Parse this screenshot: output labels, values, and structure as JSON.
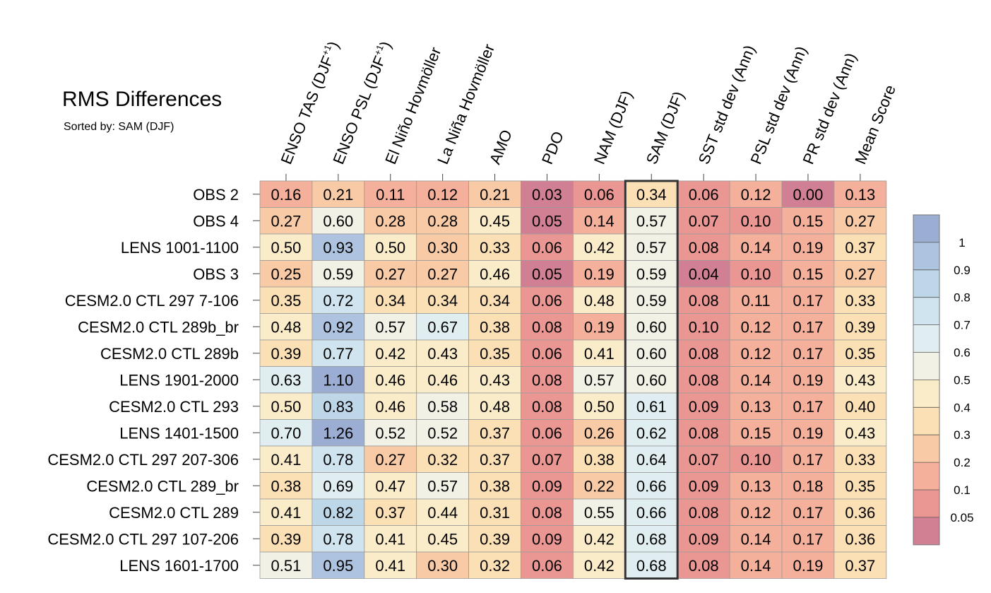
{
  "header": {
    "title": "RMS Differences",
    "subtitle": "Sorted by: SAM (DJF)"
  },
  "chart_data": {
    "type": "heatmap",
    "columns": [
      {
        "text": "ENSO TAS (DJF",
        "sup": "+1",
        "close": ")"
      },
      {
        "text": "ENSO PSL (DJF",
        "sup": "+1",
        "close": ")"
      },
      {
        "text": "El Niño Hovmöller"
      },
      {
        "text": "La Niña Hovmöller"
      },
      {
        "text": "AMO"
      },
      {
        "text": "PDO"
      },
      {
        "text": "NAM (DJF)"
      },
      {
        "text": "SAM (DJF)"
      },
      {
        "text": "SST std dev (Ann)"
      },
      {
        "text": "PSL std dev (Ann)"
      },
      {
        "text": "PR std dev (Ann)"
      },
      {
        "text": "Mean Score"
      }
    ],
    "highlighted_column": "SAM (DJF)",
    "rows": [
      "OBS 2",
      "OBS 4",
      "LENS 1001-1100",
      "OBS 3",
      "CESM2.0 CTL 297 7-106",
      "CESM2.0 CTL 289b_br",
      "CESM2.0 CTL 289b",
      "LENS 1901-2000",
      "CESM2.0 CTL 293",
      "LENS 1401-1500",
      "CESM2.0 CTL 297 207-306",
      "CESM2.0 CTL 289_br",
      "CESM2.0 CTL 289",
      "CESM2.0 CTL 297 107-206",
      "LENS 1601-1700"
    ],
    "values": [
      [
        "0.16",
        "0.21",
        "0.11",
        "0.12",
        "0.21",
        "0.03",
        "0.06",
        "0.34",
        "0.06",
        "0.12",
        "0.00",
        "0.13"
      ],
      [
        "0.27",
        "0.60",
        "0.28",
        "0.28",
        "0.45",
        "0.05",
        "0.14",
        "0.57",
        "0.07",
        "0.10",
        "0.15",
        "0.27"
      ],
      [
        "0.50",
        "0.93",
        "0.50",
        "0.30",
        "0.33",
        "0.06",
        "0.42",
        "0.57",
        "0.08",
        "0.14",
        "0.19",
        "0.37"
      ],
      [
        "0.25",
        "0.59",
        "0.27",
        "0.27",
        "0.46",
        "0.05",
        "0.19",
        "0.59",
        "0.04",
        "0.10",
        "0.15",
        "0.27"
      ],
      [
        "0.35",
        "0.72",
        "0.34",
        "0.34",
        "0.34",
        "0.06",
        "0.48",
        "0.59",
        "0.08",
        "0.11",
        "0.17",
        "0.33"
      ],
      [
        "0.48",
        "0.92",
        "0.57",
        "0.67",
        "0.38",
        "0.08",
        "0.19",
        "0.60",
        "0.10",
        "0.12",
        "0.17",
        "0.39"
      ],
      [
        "0.39",
        "0.77",
        "0.42",
        "0.43",
        "0.35",
        "0.06",
        "0.41",
        "0.60",
        "0.08",
        "0.12",
        "0.17",
        "0.35"
      ],
      [
        "0.63",
        "1.10",
        "0.46",
        "0.46",
        "0.43",
        "0.08",
        "0.57",
        "0.60",
        "0.08",
        "0.14",
        "0.19",
        "0.43"
      ],
      [
        "0.50",
        "0.83",
        "0.46",
        "0.58",
        "0.48",
        "0.08",
        "0.50",
        "0.61",
        "0.09",
        "0.13",
        "0.17",
        "0.40"
      ],
      [
        "0.70",
        "1.26",
        "0.52",
        "0.52",
        "0.37",
        "0.06",
        "0.26",
        "0.62",
        "0.08",
        "0.15",
        "0.19",
        "0.43"
      ],
      [
        "0.41",
        "0.78",
        "0.27",
        "0.32",
        "0.37",
        "0.07",
        "0.38",
        "0.64",
        "0.07",
        "0.10",
        "0.17",
        "0.33"
      ],
      [
        "0.38",
        "0.69",
        "0.47",
        "0.57",
        "0.38",
        "0.09",
        "0.22",
        "0.66",
        "0.09",
        "0.13",
        "0.18",
        "0.35"
      ],
      [
        "0.41",
        "0.82",
        "0.37",
        "0.44",
        "0.31",
        "0.08",
        "0.55",
        "0.66",
        "0.08",
        "0.12",
        "0.17",
        "0.36"
      ],
      [
        "0.39",
        "0.78",
        "0.41",
        "0.45",
        "0.39",
        "0.09",
        "0.42",
        "0.68",
        "0.09",
        "0.14",
        "0.17",
        "0.36"
      ],
      [
        "0.51",
        "0.95",
        "0.41",
        "0.30",
        "0.32",
        "0.06",
        "0.42",
        "0.68",
        "0.08",
        "0.14",
        "0.19",
        "0.37"
      ]
    ],
    "colorbar": {
      "ticks": [
        "1",
        "0.9",
        "0.8",
        "0.7",
        "0.6",
        "0.5",
        "0.4",
        "0.3",
        "0.2",
        "0.1",
        "0.05"
      ],
      "colors_top_to_bottom": [
        "#9badd3",
        "#adc3df",
        "#bdd7e9",
        "#cfe4ee",
        "#e0eef2",
        "#f2f1e6",
        "#fbecc9",
        "#fbe0b6",
        "#f8cba6",
        "#f4b09b",
        "#ea9692",
        "#d17f93"
      ]
    }
  }
}
